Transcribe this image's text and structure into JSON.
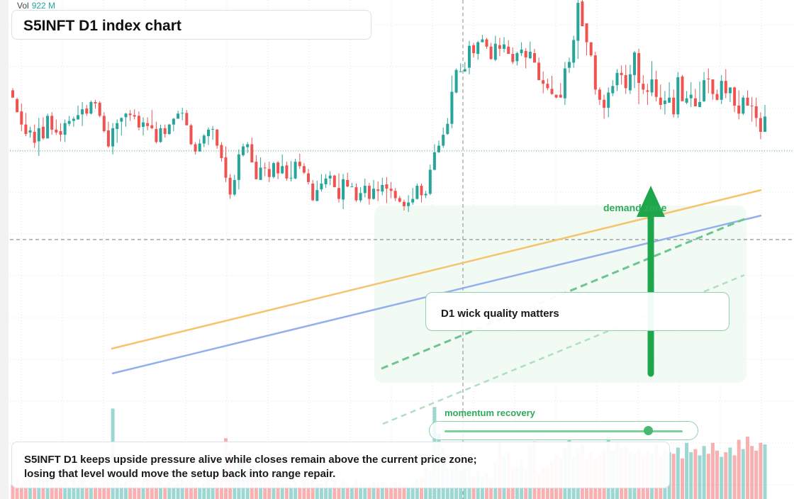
{
  "volume": {
    "label": "Vol",
    "value": "922 M"
  },
  "title": "S5INFT D1 index chart",
  "annotations": {
    "note": "D1 wick quality matters",
    "zone_label": "demand zone",
    "momentum_label": "momentum recovery",
    "momentum_level": 0.85
  },
  "footer": {
    "line1": "S5INFT D1 keeps upside pressure alive while closes remain above the current price zone;",
    "line2": "losing that level would move the setup back into range repair."
  },
  "colors": {
    "up": "#26a69a",
    "down": "#ef5350",
    "trendline_orange": "#f6c36e",
    "trendline_blue": "#92b0ee",
    "arrow": "#1ea64a",
    "zone": "#e8f6ec"
  },
  "chart_data": {
    "type": "candlestick",
    "title": "S5INFT D1 index chart",
    "ylim": [
      85,
      770
    ],
    "grid": true,
    "candles": [
      [
        646,
        636,
        649,
        636
      ],
      [
        634,
        616,
        636,
        616
      ],
      [
        617,
        599,
        628,
        590
      ],
      [
        599,
        586,
        615,
        583
      ],
      [
        588,
        591,
        596,
        581
      ],
      [
        589,
        574,
        599,
        567
      ],
      [
        576,
        594,
        608,
        556
      ],
      [
        596,
        580,
        609,
        578
      ],
      [
        580,
        611,
        614,
        580
      ],
      [
        611,
        592,
        616,
        585
      ],
      [
        592,
        588,
        606,
        585
      ],
      [
        590,
        585,
        601,
        576
      ],
      [
        585,
        601,
        606,
        575
      ],
      [
        600,
        604,
        611,
        597
      ],
      [
        604,
        607,
        610,
        596
      ],
      [
        606,
        612,
        625,
        606
      ],
      [
        613,
        620,
        630,
        597
      ],
      [
        621,
        614,
        626,
        611
      ],
      [
        614,
        630,
        632,
        613
      ],
      [
        630,
        628,
        633,
        621
      ],
      [
        629,
        611,
        631,
        609
      ],
      [
        611,
        590,
        616,
        588
      ],
      [
        591,
        569,
        603,
        567
      ],
      [
        569,
        594,
        601,
        558
      ],
      [
        593,
        601,
        606,
        574
      ],
      [
        603,
        608,
        609,
        584
      ],
      [
        609,
        614,
        615,
        596
      ],
      [
        614,
        612,
        619,
        604
      ],
      [
        612,
        610,
        620,
        606
      ],
      [
        611,
        595,
        617,
        591
      ],
      [
        596,
        602,
        609,
        584
      ],
      [
        601,
        597,
        609,
        591
      ],
      [
        598,
        594,
        619,
        593
      ],
      [
        593,
        575,
        603,
        573
      ],
      [
        575,
        594,
        599,
        574
      ],
      [
        594,
        586,
        599,
        581
      ],
      [
        586,
        599,
        600,
        585
      ],
      [
        599,
        607,
        608,
        590
      ],
      [
        607,
        614,
        618,
        607
      ],
      [
        614,
        615,
        622,
        605
      ],
      [
        615,
        598,
        619,
        598
      ],
      [
        598,
        572,
        600,
        571
      ],
      [
        572,
        562,
        575,
        558
      ],
      [
        562,
        573,
        579,
        566
      ],
      [
        573,
        584,
        586,
        568
      ],
      [
        583,
        592,
        595,
        571
      ],
      [
        592,
        593,
        597,
        578
      ],
      [
        592,
        570,
        593,
        566
      ],
      [
        571,
        553,
        575,
        548
      ],
      [
        554,
        526,
        569,
        520
      ],
      [
        526,
        503,
        531,
        497
      ],
      [
        503,
        523,
        530,
        501
      ],
      [
        523,
        558,
        565,
        510
      ],
      [
        557,
        569,
        573,
        555
      ],
      [
        568,
        572,
        575,
        560
      ],
      [
        572,
        547,
        581,
        548
      ],
      [
        548,
        524,
        557,
        524
      ],
      [
        523,
        540,
        554,
        530
      ],
      [
        540,
        539,
        547,
        528
      ],
      [
        538,
        527,
        548,
        520
      ],
      [
        527,
        546,
        548,
        525
      ],
      [
        547,
        532,
        549,
        524
      ],
      [
        532,
        542,
        558,
        531
      ],
      [
        543,
        525,
        548,
        522
      ],
      [
        525,
        526,
        549,
        521
      ],
      [
        525,
        548,
        552,
        524
      ],
      [
        548,
        542,
        559,
        538
      ],
      [
        542,
        533,
        546,
        531
      ],
      [
        532,
        520,
        538,
        517
      ],
      [
        518,
        495,
        523,
        494
      ],
      [
        494,
        509,
        522,
        497
      ],
      [
        510,
        518,
        531,
        507
      ],
      [
        517,
        525,
        531,
        512
      ],
      [
        525,
        529,
        535,
        516
      ],
      [
        529,
        513,
        530,
        513
      ],
      [
        512,
        497,
        532,
        492
      ],
      [
        496,
        524,
        531,
        483
      ],
      [
        523,
        514,
        533,
        513
      ],
      [
        514,
        514,
        519,
        513
      ],
      [
        513,
        495,
        518,
        493
      ],
      [
        495,
        505,
        513,
        492
      ],
      [
        505,
        515,
        525,
        499
      ],
      [
        515,
        497,
        519,
        489
      ],
      [
        497,
        511,
        523,
        496
      ],
      [
        510,
        508,
        521,
        494
      ],
      [
        507,
        516,
        526,
        502
      ],
      [
        517,
        511,
        527,
        491
      ],
      [
        511,
        508,
        520,
        498
      ],
      [
        508,
        498,
        512,
        494
      ],
      [
        498,
        493,
        501,
        492
      ],
      [
        493,
        487,
        496,
        481
      ],
      [
        487,
        492,
        502,
        479
      ],
      [
        492,
        497,
        512,
        489
      ],
      [
        497,
        515,
        518,
        496
      ],
      [
        515,
        502,
        518,
        492
      ],
      [
        502,
        504,
        508,
        498
      ],
      [
        504,
        537,
        544,
        502
      ],
      [
        537,
        561,
        572,
        536
      ],
      [
        561,
        570,
        577,
        560
      ],
      [
        570,
        585,
        595,
        567
      ],
      [
        586,
        600,
        608,
        585
      ],
      [
        600,
        644,
        666,
        594
      ],
      [
        643,
        674,
        676,
        642
      ],
      [
        672,
        672,
        683,
        672
      ],
      [
        672,
        675,
        685,
        671
      ],
      [
        677,
        707,
        714,
        668
      ],
      [
        708,
        697,
        711,
        691
      ],
      [
        696,
        712,
        714,
        688
      ],
      [
        712,
        716,
        722,
        712
      ],
      [
        716,
        706,
        718,
        703
      ],
      [
        706,
        689,
        711,
        688
      ],
      [
        688,
        710,
        721,
        686
      ],
      [
        708,
        703,
        718,
        693
      ],
      [
        703,
        709,
        719,
        698
      ],
      [
        706,
        696,
        715,
        705
      ],
      [
        696,
        685,
        705,
        682
      ],
      [
        686,
        697,
        699,
        680
      ],
      [
        697,
        702,
        712,
        693
      ],
      [
        700,
        691,
        704,
        676
      ],
      [
        690,
        699,
        713,
        689
      ],
      [
        697,
        684,
        703,
        686
      ],
      [
        684,
        660,
        691,
        662
      ],
      [
        660,
        655,
        672,
        642
      ],
      [
        655,
        649,
        662,
        646
      ],
      [
        648,
        641,
        666,
        640
      ],
      [
        640,
        636,
        640,
        635
      ],
      [
        640,
        636,
        656,
        636
      ],
      [
        635,
        676,
        685,
        626
      ],
      [
        677,
        685,
        691,
        670
      ],
      [
        684,
        715,
        721,
        677
      ],
      [
        714,
        766,
        771,
        689
      ],
      [
        768,
        734,
        770,
        739
      ],
      [
        738,
        712,
        722,
        694
      ],
      [
        712,
        694,
        700,
        692
      ],
      [
        694,
        647,
        699,
        640
      ],
      [
        647,
        633,
        650,
        626
      ],
      [
        633,
        622,
        640,
        607
      ],
      [
        622,
        643,
        650,
        609
      ],
      [
        642,
        652,
        660,
        638
      ],
      [
        653,
        670,
        675,
        645
      ],
      [
        670,
        667,
        680,
        654
      ],
      [
        667,
        649,
        681,
        641
      ],
      [
        646,
        668,
        681,
        641
      ],
      [
        667,
        698,
        700,
        649
      ],
      [
        697,
        656,
        703,
        627
      ],
      [
        655,
        647,
        667,
        641
      ],
      [
        646,
        644,
        655,
        626
      ],
      [
        643,
        661,
        686,
        638
      ],
      [
        661,
        637,
        673,
        631
      ],
      [
        636,
        626,
        654,
        620
      ],
      [
        627,
        632,
        645,
        613
      ],
      [
        629,
        636,
        657,
        631
      ],
      [
        636,
        613,
        647,
        609
      ],
      [
        613,
        664,
        671,
        608
      ],
      [
        665,
        631,
        667,
        637
      ],
      [
        629,
        635,
        645,
        627
      ],
      [
        635,
        640,
        657,
        623
      ],
      [
        635,
        624,
        648,
        629
      ],
      [
        623,
        630,
        658,
        623
      ],
      [
        631,
        660,
        671,
        630
      ],
      [
        662,
        661,
        676,
        642
      ],
      [
        661,
        641,
        661,
        633
      ],
      [
        641,
        633,
        647,
        632
      ],
      [
        633,
        659,
        667,
        627
      ],
      [
        659,
        642,
        675,
        635
      ],
      [
        642,
        650,
        645,
        630
      ],
      [
        650,
        625,
        651,
        616
      ],
      [
        625,
        614,
        646,
        606
      ],
      [
        614,
        636,
        639,
        612
      ],
      [
        636,
        625,
        646,
        625
      ],
      [
        625,
        624,
        637,
        603
      ],
      [
        624,
        608,
        636,
        596
      ],
      [
        608,
        589,
        616,
        579
      ],
      [
        589,
        610,
        626,
        605
      ]
    ],
    "volume": [
      0.09,
      0.13,
      0.1,
      0.11,
      0.13,
      0.15,
      0.18,
      0.15,
      0.13,
      0.12,
      0.11,
      0.1,
      0.11,
      0.09,
      0.11,
      0.1,
      0.13,
      0.09,
      0.11,
      0.1,
      0.09,
      0.11,
      0.11,
      0.58,
      0.12,
      0.1,
      0.11,
      0.1,
      0.09,
      0.08,
      0.11,
      0.13,
      0.1,
      0.14,
      0.11,
      0.09,
      0.11,
      0.09,
      0.1,
      0.11,
      0.1,
      0.11,
      0.1,
      0.08,
      0.1,
      0.11,
      0.1,
      0.13,
      0.13,
      0.39,
      0.31,
      0.3,
      0.28,
      0.26,
      0.2,
      0.21,
      0.18,
      0.16,
      0.16,
      0.13,
      0.13,
      0.11,
      0.1,
      0.1,
      0.09,
      0.11,
      0.09,
      0.12,
      0.11,
      0.12,
      0.1,
      0.1,
      0.11,
      0.08,
      0.12,
      0.09,
      0.12,
      0.1,
      0.09,
      0.12,
      0.1,
      0.1,
      0.09,
      0.11,
      0.1,
      0.11,
      0.09,
      0.1,
      0.11,
      0.1,
      0.09,
      0.09,
      0.1,
      0.13,
      0.14,
      0.2,
      0.18,
      0.59,
      0.42,
      0.33,
      0.2,
      0.21,
      0.24,
      0.18,
      0.2,
      0.24,
      0.15,
      0.18,
      0.14,
      0.17,
      0.13,
      0.24,
      0.36,
      0.28,
      0.3,
      0.2,
      0.21,
      0.25,
      0.19,
      0.34,
      0.37,
      0.17,
      0.21,
      0.2,
      0.24,
      0.28,
      0.26,
      0.33,
      0.38,
      0.28,
      0.32,
      0.35,
      0.25,
      0.3,
      0.26,
      0.28,
      0.32,
      0.4,
      0.31,
      0.36,
      0.33,
      0.34,
      0.3,
      0.29,
      0.32,
      0.28,
      0.31,
      0.29,
      0.35,
      0.27,
      0.31,
      0.3,
      0.29,
      0.33,
      0.26,
      0.36,
      0.3,
      0.32,
      0.28,
      0.34,
      0.29,
      0.36,
      0.31,
      0.27,
      0.3,
      0.33,
      0.28,
      0.38,
      0.32,
      0.4,
      0.34,
      0.31,
      0.36,
      0.35
    ],
    "volume_label": "Vol",
    "volume_value": "922 M"
  }
}
